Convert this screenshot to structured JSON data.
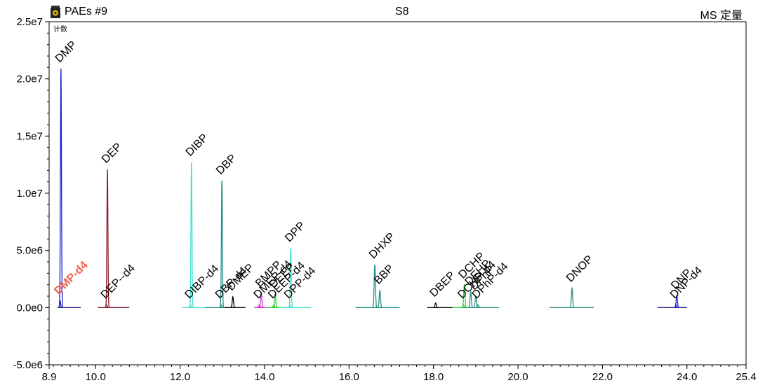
{
  "header": {
    "left_title": "PAEs #9",
    "center_title": "S8",
    "right_title": "MS 定量"
  },
  "chart_data": {
    "type": "line",
    "title": "S8",
    "ylabel": "计数",
    "xlim": [
      8.9,
      25.4
    ],
    "ylim": [
      -5000000.0,
      25000000.0
    ],
    "x_ticks": [
      "8.9",
      "10.0",
      "12.0",
      "14.0",
      "16.0",
      "18.0",
      "20.0",
      "22.0",
      "24.0",
      "25.4"
    ],
    "x_tick_values": [
      8.9,
      10.0,
      12.0,
      14.0,
      16.0,
      18.0,
      20.0,
      22.0,
      24.0,
      25.4
    ],
    "y_ticks": [
      "2.5e7",
      "2.0e7",
      "1.5e7",
      "1.0e7",
      "5.0e6",
      "0.0e0",
      "-5.0e6"
    ],
    "y_tick_values": [
      25000000.0,
      20000000.0,
      15000000.0,
      10000000.0,
      5000000.0,
      0.0,
      -5000000.0
    ],
    "segments": [
      {
        "color": "#1a1a8c",
        "x0": 9.1,
        "x1": 9.65
      },
      {
        "color": "#7a1020",
        "x0": 10.05,
        "x1": 10.8
      },
      {
        "color": "#40e0d0",
        "x0": 12.05,
        "x1": 12.6
      },
      {
        "color": "#1f8f85",
        "x0": 12.6,
        "x1": 13.3
      },
      {
        "color": "#000000",
        "x0": 13.05,
        "x1": 13.55
      },
      {
        "color": "#cc33cc",
        "x0": 13.75,
        "x1": 14.05
      },
      {
        "color": "#33cc33",
        "x0": 14.05,
        "x1": 14.55
      },
      {
        "color": "#40e0d0",
        "x0": 14.35,
        "x1": 15.1
      },
      {
        "color": "#1f8f85",
        "x0": 16.15,
        "x1": 17.2
      },
      {
        "color": "#000000",
        "x0": 17.85,
        "x1": 18.45
      },
      {
        "color": "#33cc33",
        "x0": 18.45,
        "x1": 19.0
      },
      {
        "color": "#2a8f80",
        "x0": 18.65,
        "x1": 19.55
      },
      {
        "color": "#2a8f80",
        "x0": 20.75,
        "x1": 21.8
      },
      {
        "color": "#1a1a8c",
        "x0": 23.3,
        "x1": 24.0
      }
    ],
    "peaks": [
      {
        "label": "DMP",
        "rt": 9.18,
        "height": 20900000,
        "width": 0.012,
        "color": "#1f1fd1",
        "label_color": "#000000",
        "bold": false
      },
      {
        "label": "DMP-d4",
        "rt": 9.16,
        "height": 600000,
        "width": 0.012,
        "color": "#1a1a8c",
        "label_color": "#f06050",
        "bold": true
      },
      {
        "label": "DEP",
        "rt": 10.28,
        "height": 12100000,
        "width": 0.012,
        "color": "#8b1a2a",
        "label_color": "#000000",
        "bold": false
      },
      {
        "label": "DEP--d4",
        "rt": 10.26,
        "height": 250000,
        "width": 0.012,
        "color": "#8b1a2a",
        "label_color": "#000000",
        "bold": false
      },
      {
        "label": "DIBP",
        "rt": 12.27,
        "height": 12700000,
        "width": 0.012,
        "color": "#40e0d0",
        "label_color": "#000000",
        "bold": false
      },
      {
        "label": "DIBP-d4",
        "rt": 12.25,
        "height": 250000,
        "width": 0.012,
        "color": "#40e0d0",
        "label_color": "#000000",
        "bold": false
      },
      {
        "label": "DBP",
        "rt": 12.99,
        "height": 11100000,
        "width": 0.012,
        "color": "#1f8f85",
        "label_color": "#000000",
        "bold": false
      },
      {
        "label": "DBP-d4",
        "rt": 12.97,
        "height": 250000,
        "width": 0.012,
        "color": "#1f8f85",
        "label_color": "#000000",
        "bold": false
      },
      {
        "label": "DMEP",
        "rt": 13.25,
        "height": 950000,
        "width": 0.015,
        "color": "#000000",
        "label_color": "#000000",
        "bold": false
      },
      {
        "label": "BMPP",
        "rt": 13.92,
        "height": 1250000,
        "width": 0.015,
        "color": "#cc33cc",
        "label_color": "#000000",
        "bold": false
      },
      {
        "label": "DMEP-d4",
        "rt": 13.88,
        "height": 250000,
        "width": 0.015,
        "color": "#cc33cc",
        "label_color": "#000000",
        "bold": false
      },
      {
        "label": "DEEP",
        "rt": 14.25,
        "height": 1150000,
        "width": 0.015,
        "color": "#33cc33",
        "label_color": "#000000",
        "bold": false
      },
      {
        "label": "DEEP-d4",
        "rt": 14.22,
        "height": 250000,
        "width": 0.015,
        "color": "#33cc33",
        "label_color": "#000000",
        "bold": false
      },
      {
        "label": "DPP",
        "rt": 14.62,
        "height": 5200000,
        "width": 0.012,
        "color": "#40e0d0",
        "label_color": "#000000",
        "bold": false
      },
      {
        "label": "DPP-d4",
        "rt": 14.6,
        "height": 250000,
        "width": 0.012,
        "color": "#40e0d0",
        "label_color": "#000000",
        "bold": false
      },
      {
        "label": "DHXP",
        "rt": 16.61,
        "height": 3750000,
        "width": 0.015,
        "color": "#1f8f85",
        "label_color": "#000000",
        "bold": false
      },
      {
        "label": "BBP",
        "rt": 16.73,
        "height": 1500000,
        "width": 0.015,
        "color": "#1f8f85",
        "label_color": "#000000",
        "bold": false
      },
      {
        "label": "DBEP",
        "rt": 18.05,
        "height": 400000,
        "width": 0.015,
        "color": "#000000",
        "label_color": "#000000",
        "bold": false
      },
      {
        "label": "DCHP",
        "rt": 18.73,
        "height": 2000000,
        "width": 0.015,
        "color": "#33cc33",
        "label_color": "#000000",
        "bold": false
      },
      {
        "label": "DCHP-d4",
        "rt": 18.71,
        "height": 250000,
        "width": 0.015,
        "color": "#33cc33",
        "label_color": "#000000",
        "bold": false
      },
      {
        "label": "DEHP",
        "rt": 18.88,
        "height": 1400000,
        "width": 0.015,
        "color": "#2a8f80",
        "label_color": "#000000",
        "bold": false
      },
      {
        "label": "DPhP",
        "rt": 19.0,
        "height": 1000000,
        "width": 0.015,
        "color": "#2a8f80",
        "label_color": "#000000",
        "bold": false
      },
      {
        "label": "DPhP-d4",
        "rt": 19.05,
        "height": 250000,
        "width": 0.015,
        "color": "#2a8f80",
        "label_color": "#000000",
        "bold": false
      },
      {
        "label": "DNOP",
        "rt": 21.28,
        "height": 1700000,
        "width": 0.015,
        "color": "#2a8f80",
        "label_color": "#000000",
        "bold": false
      },
      {
        "label": "DNP",
        "rt": 23.76,
        "height": 1050000,
        "width": 0.015,
        "color": "#1f1fd1",
        "label_color": "#000000",
        "bold": false
      },
      {
        "label": "DNP-d4",
        "rt": 23.74,
        "height": 250000,
        "width": 0.015,
        "color": "#1f1fd1",
        "label_color": "#000000",
        "bold": false
      }
    ]
  }
}
